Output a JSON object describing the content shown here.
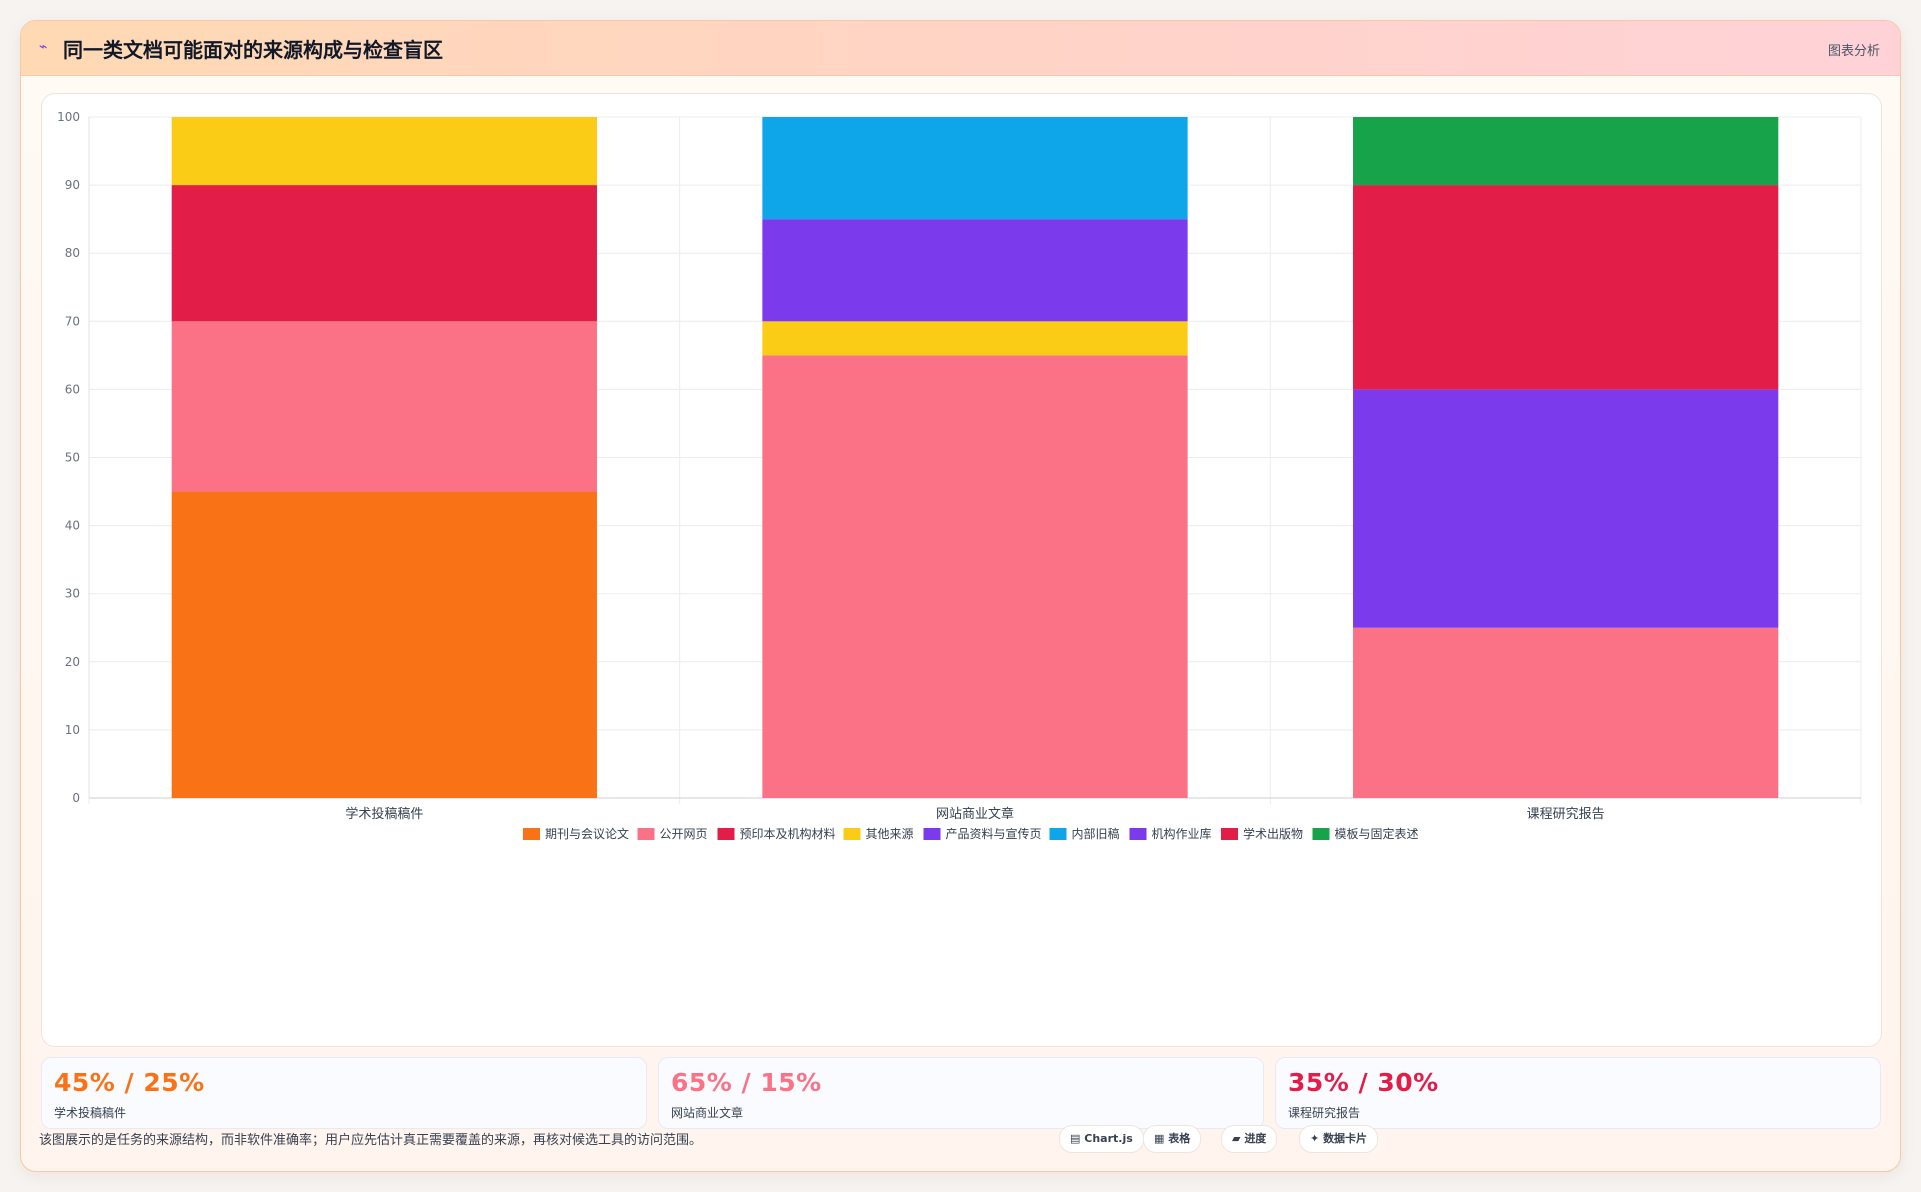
{
  "header": {
    "icon": "chart-icon",
    "title": "同一类文档可能面对的来源构成与检查盲区",
    "badge": "图表分析"
  },
  "chart_data": {
    "type": "bar",
    "stacked": true,
    "title": "",
    "xlabel": "",
    "ylabel": "",
    "ylim": [
      0,
      100
    ],
    "yticks": [
      0,
      10,
      20,
      30,
      40,
      50,
      60,
      70,
      80,
      90,
      100
    ],
    "grid": true,
    "legend_position": "bottom",
    "categories": [
      "学术投稿稿件",
      "网站商业文章",
      "课程研究报告"
    ],
    "series": [
      {
        "name": "期刊与会议论文",
        "color": "#f97316",
        "values": [
          45,
          0,
          0
        ]
      },
      {
        "name": "公开网页",
        "color": "#fb7185",
        "values": [
          25,
          65,
          25
        ]
      },
      {
        "name": "预印本及机构材料",
        "color": "#e11d48",
        "values": [
          20,
          0,
          0
        ]
      },
      {
        "name": "其他来源",
        "color": "#facc15",
        "values": [
          10,
          5,
          0
        ]
      },
      {
        "name": "产品资料与宣传页",
        "color": "#7c3aed",
        "values": [
          0,
          15,
          0
        ]
      },
      {
        "name": "内部旧稿",
        "color": "#0ea5e9",
        "values": [
          0,
          15,
          0
        ]
      },
      {
        "name": "机构作业库",
        "color": "#7c3aed",
        "values": [
          0,
          0,
          35
        ]
      },
      {
        "name": "学术出版物",
        "color": "#e11d48",
        "values": [
          0,
          0,
          30
        ]
      },
      {
        "name": "模板与固定表述",
        "color": "#16a34a",
        "values": [
          0,
          0,
          10
        ]
      }
    ]
  },
  "stats": [
    {
      "value": "45% / 25%",
      "label": "学术投稿稿件",
      "color": "#f97316"
    },
    {
      "value": "65% / 15%",
      "label": "网站商业文章",
      "color": "#fb7185"
    },
    {
      "value": "35% / 30%",
      "label": "课程研究报告",
      "color": "#e11d48"
    }
  ],
  "footer": {
    "note": "该图展示的是任务的来源结构，而非软件准确率；用户应先估计真正需要覆盖的来源，再核对候选工具的访问范围。"
  },
  "tags": [
    {
      "icon": "chart-icon",
      "label": "Chart.js"
    },
    {
      "icon": "table-icon",
      "label": "表格"
    },
    {
      "icon": "progress-icon",
      "label": "进度"
    },
    {
      "icon": "card-icon",
      "label": "数据卡片"
    }
  ]
}
